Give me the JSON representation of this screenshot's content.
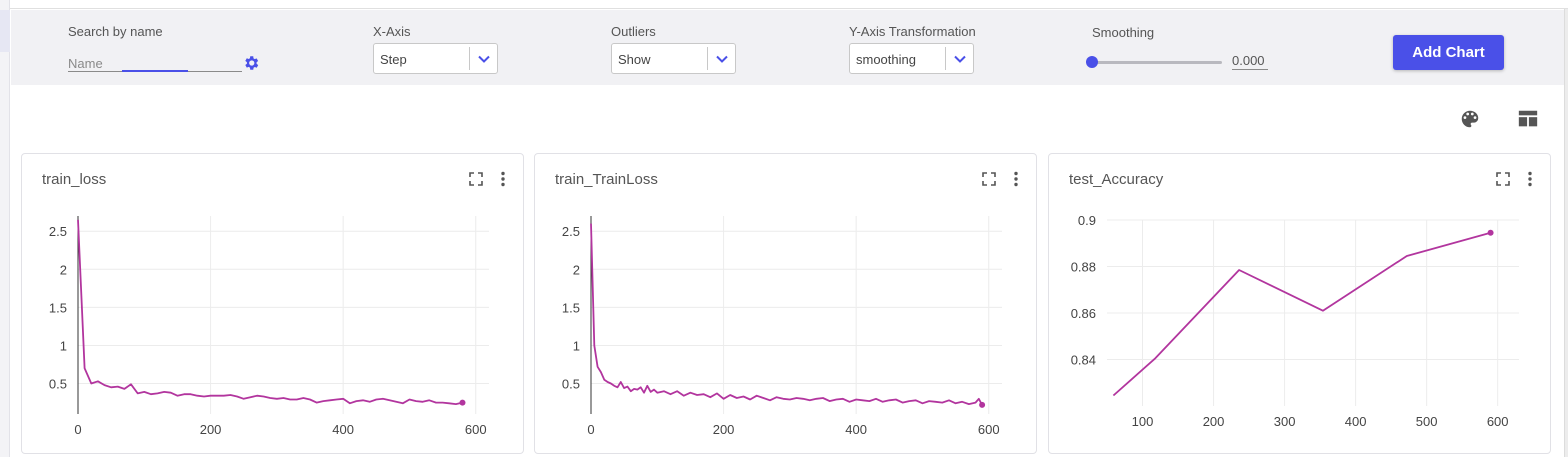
{
  "toolbar": {
    "search": {
      "label": "Search by name",
      "placeholder": "Name"
    },
    "x_axis": {
      "label": "X-Axis",
      "value": "Step"
    },
    "outliers": {
      "label": "Outliers",
      "value": "Show"
    },
    "y_transform": {
      "label": "Y-Axis Transformation",
      "value": "smoothing"
    },
    "smoothing": {
      "label": "Smoothing",
      "value": "0.000",
      "fraction": 0.0
    },
    "add_chart": "Add Chart"
  },
  "icons": {
    "gear": "gear-icon",
    "palette": "palette-icon",
    "layout": "layout-icon",
    "expand": "fullscreen-icon",
    "menu": "more-vert-icon"
  },
  "colors": {
    "accent": "#4a50e8",
    "series": "#b2359e"
  },
  "charts": [
    {
      "title": "train_loss"
    },
    {
      "title": "train_TrainLoss"
    },
    {
      "title": "test_Accuracy"
    }
  ],
  "chart_data": [
    {
      "type": "line",
      "title": "train_loss",
      "xlim": [
        0,
        620
      ],
      "ylim": [
        0.1,
        2.7
      ],
      "xticks": [
        "0",
        "200",
        "400",
        "600"
      ],
      "yticks": [
        "0.5",
        "1",
        "1.5",
        "2",
        "2.5"
      ],
      "xtick_values": [
        0,
        200,
        400,
        600
      ],
      "ytick_values": [
        0.5,
        1,
        1.5,
        2,
        2.5
      ],
      "series": [
        {
          "x": [
            0,
            10,
            20,
            30,
            40,
            50,
            60,
            70,
            80,
            90,
            100,
            110,
            120,
            130,
            140,
            150,
            160,
            170,
            180,
            190,
            200,
            210,
            220,
            230,
            240,
            250,
            260,
            270,
            280,
            290,
            300,
            310,
            320,
            330,
            340,
            350,
            360,
            370,
            380,
            390,
            400,
            410,
            420,
            430,
            440,
            450,
            460,
            470,
            480,
            490,
            500,
            510,
            520,
            530,
            540,
            550,
            560,
            570,
            580
          ],
          "y": [
            2.65,
            0.7,
            0.5,
            0.53,
            0.48,
            0.45,
            0.46,
            0.43,
            0.49,
            0.37,
            0.39,
            0.36,
            0.37,
            0.39,
            0.38,
            0.34,
            0.36,
            0.36,
            0.34,
            0.33,
            0.34,
            0.34,
            0.34,
            0.35,
            0.33,
            0.3,
            0.32,
            0.34,
            0.33,
            0.31,
            0.3,
            0.31,
            0.29,
            0.29,
            0.31,
            0.29,
            0.25,
            0.27,
            0.28,
            0.29,
            0.3,
            0.24,
            0.27,
            0.28,
            0.26,
            0.29,
            0.3,
            0.28,
            0.26,
            0.24,
            0.29,
            0.27,
            0.26,
            0.28,
            0.25,
            0.25,
            0.24,
            0.23,
            0.25
          ]
        }
      ]
    },
    {
      "type": "line",
      "title": "train_TrainLoss",
      "xlim": [
        0,
        620
      ],
      "ylim": [
        0.1,
        2.7
      ],
      "xticks": [
        "0",
        "200",
        "400",
        "600"
      ],
      "yticks": [
        "0.5",
        "1",
        "1.5",
        "2",
        "2.5"
      ],
      "xtick_values": [
        0,
        200,
        400,
        600
      ],
      "ytick_values": [
        0.5,
        1,
        1.5,
        2,
        2.5
      ],
      "series": [
        {
          "x": [
            0,
            5,
            10,
            15,
            20,
            25,
            30,
            35,
            40,
            45,
            50,
            55,
            60,
            65,
            70,
            75,
            80,
            85,
            90,
            95,
            100,
            110,
            120,
            130,
            140,
            150,
            160,
            170,
            180,
            190,
            200,
            210,
            220,
            230,
            240,
            250,
            260,
            270,
            280,
            290,
            300,
            310,
            320,
            330,
            340,
            350,
            360,
            370,
            380,
            390,
            400,
            410,
            420,
            430,
            440,
            450,
            460,
            470,
            480,
            490,
            500,
            510,
            520,
            530,
            540,
            550,
            560,
            570,
            580,
            585,
            590
          ],
          "y": [
            2.6,
            1.0,
            0.72,
            0.65,
            0.55,
            0.52,
            0.5,
            0.47,
            0.45,
            0.52,
            0.44,
            0.46,
            0.4,
            0.43,
            0.42,
            0.45,
            0.38,
            0.47,
            0.39,
            0.42,
            0.38,
            0.4,
            0.36,
            0.4,
            0.34,
            0.38,
            0.35,
            0.36,
            0.32,
            0.37,
            0.3,
            0.35,
            0.31,
            0.33,
            0.29,
            0.34,
            0.31,
            0.28,
            0.32,
            0.3,
            0.29,
            0.31,
            0.3,
            0.28,
            0.3,
            0.31,
            0.27,
            0.29,
            0.3,
            0.26,
            0.29,
            0.28,
            0.27,
            0.3,
            0.26,
            0.28,
            0.29,
            0.25,
            0.27,
            0.28,
            0.24,
            0.27,
            0.26,
            0.25,
            0.28,
            0.24,
            0.26,
            0.23,
            0.25,
            0.3,
            0.22
          ]
        }
      ]
    },
    {
      "type": "line",
      "title": "test_Accuracy",
      "xlim": [
        50,
        630
      ],
      "ylim": [
        0.82,
        0.9
      ],
      "xticks": [
        "100",
        "200",
        "300",
        "400",
        "500",
        "600"
      ],
      "yticks": [
        "0.84",
        "0.86",
        "0.88",
        "0.9"
      ],
      "xtick_values": [
        100,
        200,
        300,
        400,
        500,
        600
      ],
      "ytick_values": [
        0.84,
        0.86,
        0.88,
        0.9
      ],
      "series": [
        {
          "x": [
            59,
            118,
            236,
            354,
            472,
            590
          ],
          "y": [
            0.8245,
            0.8405,
            0.8785,
            0.861,
            0.8845,
            0.8945
          ]
        }
      ]
    }
  ]
}
